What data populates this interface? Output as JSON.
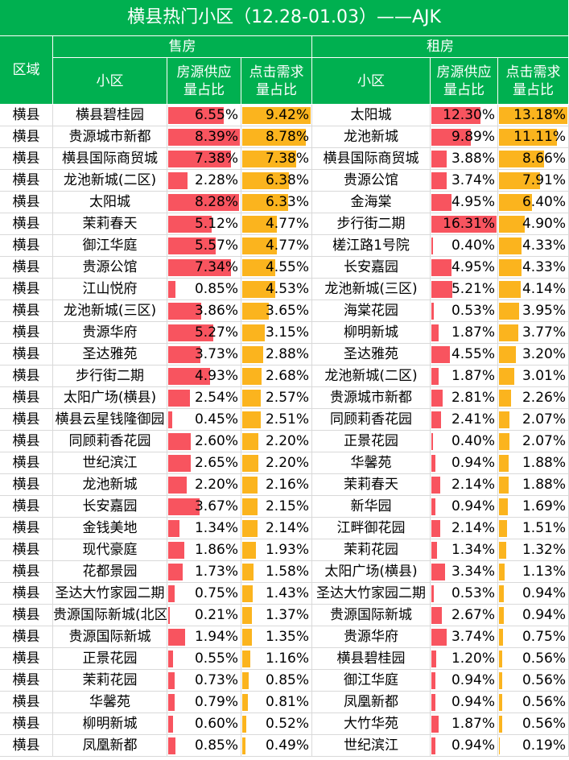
{
  "title": "横县热门小区（12.28-01.03）——AJK",
  "headers": {
    "region": "区域",
    "sale": "售房",
    "rent": "租房",
    "community": "小区",
    "supply": [
      "房源供应",
      "量占比"
    ],
    "click": [
      "点击需求",
      "量占比"
    ]
  },
  "bar_colors": {
    "supply": "#f8545f",
    "click": "#fbb41e",
    "header": "#00b050"
  },
  "rows": [
    {
      "region": "横县",
      "sale": {
        "name": "横县碧桂园",
        "supply": "6.55%",
        "click": "9.42%"
      },
      "rent": {
        "name": "太阳城",
        "supply": "12.30%",
        "click": "13.18%"
      }
    },
    {
      "region": "横县",
      "sale": {
        "name": "贵源城市新都",
        "supply": "8.39%",
        "click": "8.78%"
      },
      "rent": {
        "name": "龙池新城",
        "supply": "9.89%",
        "click": "11.11%"
      }
    },
    {
      "region": "横县",
      "sale": {
        "name": "横县国际商贸城",
        "supply": "7.38%",
        "click": "7.38%"
      },
      "rent": {
        "name": "横县国际商贸城",
        "supply": "3.88%",
        "click": "8.66%"
      }
    },
    {
      "region": "横县",
      "sale": {
        "name": "龙池新城(二区)",
        "supply": "2.28%",
        "click": "6.38%"
      },
      "rent": {
        "name": "贵源公馆",
        "supply": "3.74%",
        "click": "7.91%"
      }
    },
    {
      "region": "横县",
      "sale": {
        "name": "太阳城",
        "supply": "8.28%",
        "click": "6.33%"
      },
      "rent": {
        "name": "金海棠",
        "supply": "4.95%",
        "click": "6.40%"
      }
    },
    {
      "region": "横县",
      "sale": {
        "name": "茉莉春天",
        "supply": "5.12%",
        "click": "4.77%"
      },
      "rent": {
        "name": "步行街二期",
        "supply": "16.31%",
        "click": "4.90%"
      }
    },
    {
      "region": "横县",
      "sale": {
        "name": "御江华庭",
        "supply": "5.57%",
        "click": "4.77%"
      },
      "rent": {
        "name": "槎江路1号院",
        "supply": "0.40%",
        "click": "4.33%"
      }
    },
    {
      "region": "横县",
      "sale": {
        "name": "贵源公馆",
        "supply": "7.34%",
        "click": "4.55%"
      },
      "rent": {
        "name": "长安嘉园",
        "supply": "4.95%",
        "click": "4.33%"
      }
    },
    {
      "region": "横县",
      "sale": {
        "name": "江山悦府",
        "supply": "0.85%",
        "click": "4.53%"
      },
      "rent": {
        "name": "龙池新城(三区)",
        "supply": "5.21%",
        "click": "4.14%"
      }
    },
    {
      "region": "横县",
      "sale": {
        "name": "龙池新城(三区)",
        "supply": "3.86%",
        "click": "3.65%"
      },
      "rent": {
        "name": "海棠花园",
        "supply": "0.53%",
        "click": "3.95%"
      }
    },
    {
      "region": "横县",
      "sale": {
        "name": "贵源华府",
        "supply": "5.27%",
        "click": "3.15%"
      },
      "rent": {
        "name": "柳明新城",
        "supply": "1.87%",
        "click": "3.77%"
      }
    },
    {
      "region": "横县",
      "sale": {
        "name": "圣达雅苑",
        "supply": "3.73%",
        "click": "2.88%"
      },
      "rent": {
        "name": "圣达雅苑",
        "supply": "4.55%",
        "click": "3.20%"
      }
    },
    {
      "region": "横县",
      "sale": {
        "name": "步行街二期",
        "supply": "4.93%",
        "click": "2.68%"
      },
      "rent": {
        "name": "龙池新城(二区)",
        "supply": "1.87%",
        "click": "3.01%"
      }
    },
    {
      "region": "横县",
      "sale": {
        "name": "太阳广场(横县)",
        "supply": "2.54%",
        "click": "2.57%"
      },
      "rent": {
        "name": "贵源城市新都",
        "supply": "2.81%",
        "click": "2.26%"
      }
    },
    {
      "region": "横县",
      "sale": {
        "name": "横县云星钱隆御园",
        "supply": "0.45%",
        "click": "2.51%"
      },
      "rent": {
        "name": "同顾莉香花园",
        "supply": "2.41%",
        "click": "2.07%"
      }
    },
    {
      "region": "横县",
      "sale": {
        "name": "同顾莉香花园",
        "supply": "2.60%",
        "click": "2.20%"
      },
      "rent": {
        "name": "正景花园",
        "supply": "0.40%",
        "click": "2.07%"
      }
    },
    {
      "region": "横县",
      "sale": {
        "name": "世纪滨江",
        "supply": "2.65%",
        "click": "2.20%"
      },
      "rent": {
        "name": "华馨苑",
        "supply": "0.94%",
        "click": "1.88%"
      }
    },
    {
      "region": "横县",
      "sale": {
        "name": "龙池新城",
        "supply": "2.20%",
        "click": "2.16%"
      },
      "rent": {
        "name": "茉莉春天",
        "supply": "2.14%",
        "click": "1.88%"
      }
    },
    {
      "region": "横县",
      "sale": {
        "name": "长安嘉园",
        "supply": "3.67%",
        "click": "2.15%"
      },
      "rent": {
        "name": "新华园",
        "supply": "0.94%",
        "click": "1.69%"
      }
    },
    {
      "region": "横县",
      "sale": {
        "name": "金钱美地",
        "supply": "1.34%",
        "click": "2.14%"
      },
      "rent": {
        "name": "江畔御花园",
        "supply": "2.14%",
        "click": "1.51%"
      }
    },
    {
      "region": "横县",
      "sale": {
        "name": "现代豪庭",
        "supply": "1.86%",
        "click": "1.93%"
      },
      "rent": {
        "name": "茉莉花园",
        "supply": "1.34%",
        "click": "1.32%"
      }
    },
    {
      "region": "横县",
      "sale": {
        "name": "花都景园",
        "supply": "1.73%",
        "click": "1.58%"
      },
      "rent": {
        "name": "太阳广场(横县)",
        "supply": "3.34%",
        "click": "1.13%"
      }
    },
    {
      "region": "横县",
      "sale": {
        "name": "圣达大竹家园二期",
        "supply": "0.75%",
        "click": "1.43%"
      },
      "rent": {
        "name": "圣达大竹家园二期",
        "supply": "0.53%",
        "click": "0.94%"
      }
    },
    {
      "region": "横县",
      "sale": {
        "name": "贵源国际新城(北区)",
        "supply": "0.21%",
        "click": "1.37%"
      },
      "rent": {
        "name": "贵源国际新城",
        "supply": "2.67%",
        "click": "0.94%"
      }
    },
    {
      "region": "横县",
      "sale": {
        "name": "贵源国际新城",
        "supply": "1.94%",
        "click": "1.35%"
      },
      "rent": {
        "name": "贵源华府",
        "supply": "3.74%",
        "click": "0.75%"
      }
    },
    {
      "region": "横县",
      "sale": {
        "name": "正景花园",
        "supply": "0.55%",
        "click": "1.16%"
      },
      "rent": {
        "name": "横县碧桂园",
        "supply": "1.20%",
        "click": "0.56%"
      }
    },
    {
      "region": "横县",
      "sale": {
        "name": "茉莉花园",
        "supply": "0.73%",
        "click": "0.85%"
      },
      "rent": {
        "name": "御江华庭",
        "supply": "0.94%",
        "click": "0.56%"
      }
    },
    {
      "region": "横县",
      "sale": {
        "name": "华馨苑",
        "supply": "0.79%",
        "click": "0.81%"
      },
      "rent": {
        "name": "凤凰新都",
        "supply": "0.94%",
        "click": "0.56%"
      }
    },
    {
      "region": "横县",
      "sale": {
        "name": "柳明新城",
        "supply": "0.60%",
        "click": "0.52%"
      },
      "rent": {
        "name": "大竹华苑",
        "supply": "1.87%",
        "click": "0.56%"
      }
    },
    {
      "region": "横县",
      "sale": {
        "name": "凤凰新都",
        "supply": "0.85%",
        "click": "0.49%"
      },
      "rent": {
        "name": "世纪滨江",
        "supply": "0.94%",
        "click": "0.19%"
      }
    }
  ]
}
